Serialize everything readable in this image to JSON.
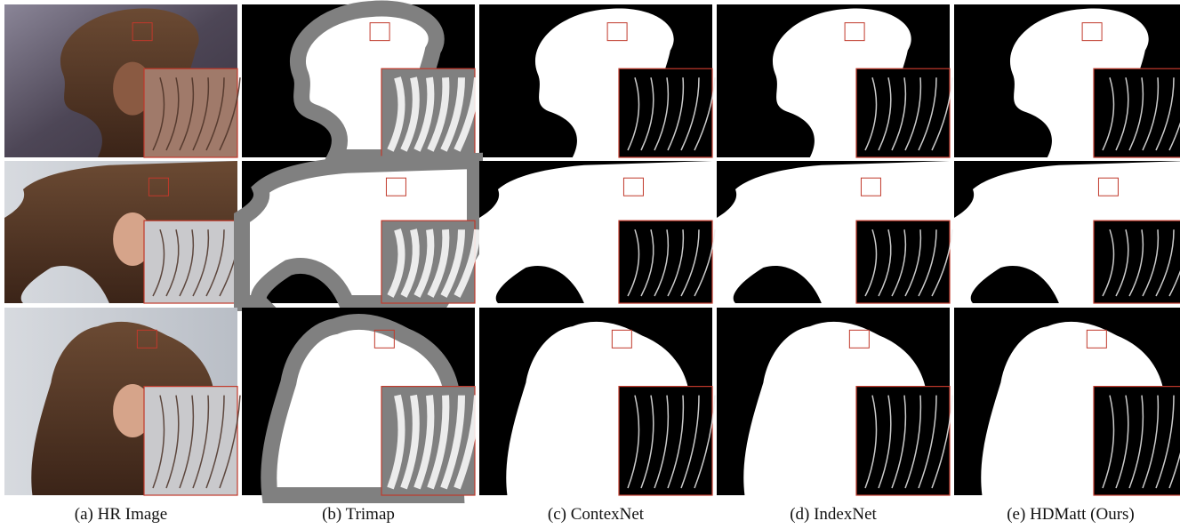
{
  "captions": [
    "(a) HR Image",
    "(b) Trimap",
    "(c) ContexNet",
    "(d) IndexNet",
    "(e) HDMatt (Ours)"
  ]
}
